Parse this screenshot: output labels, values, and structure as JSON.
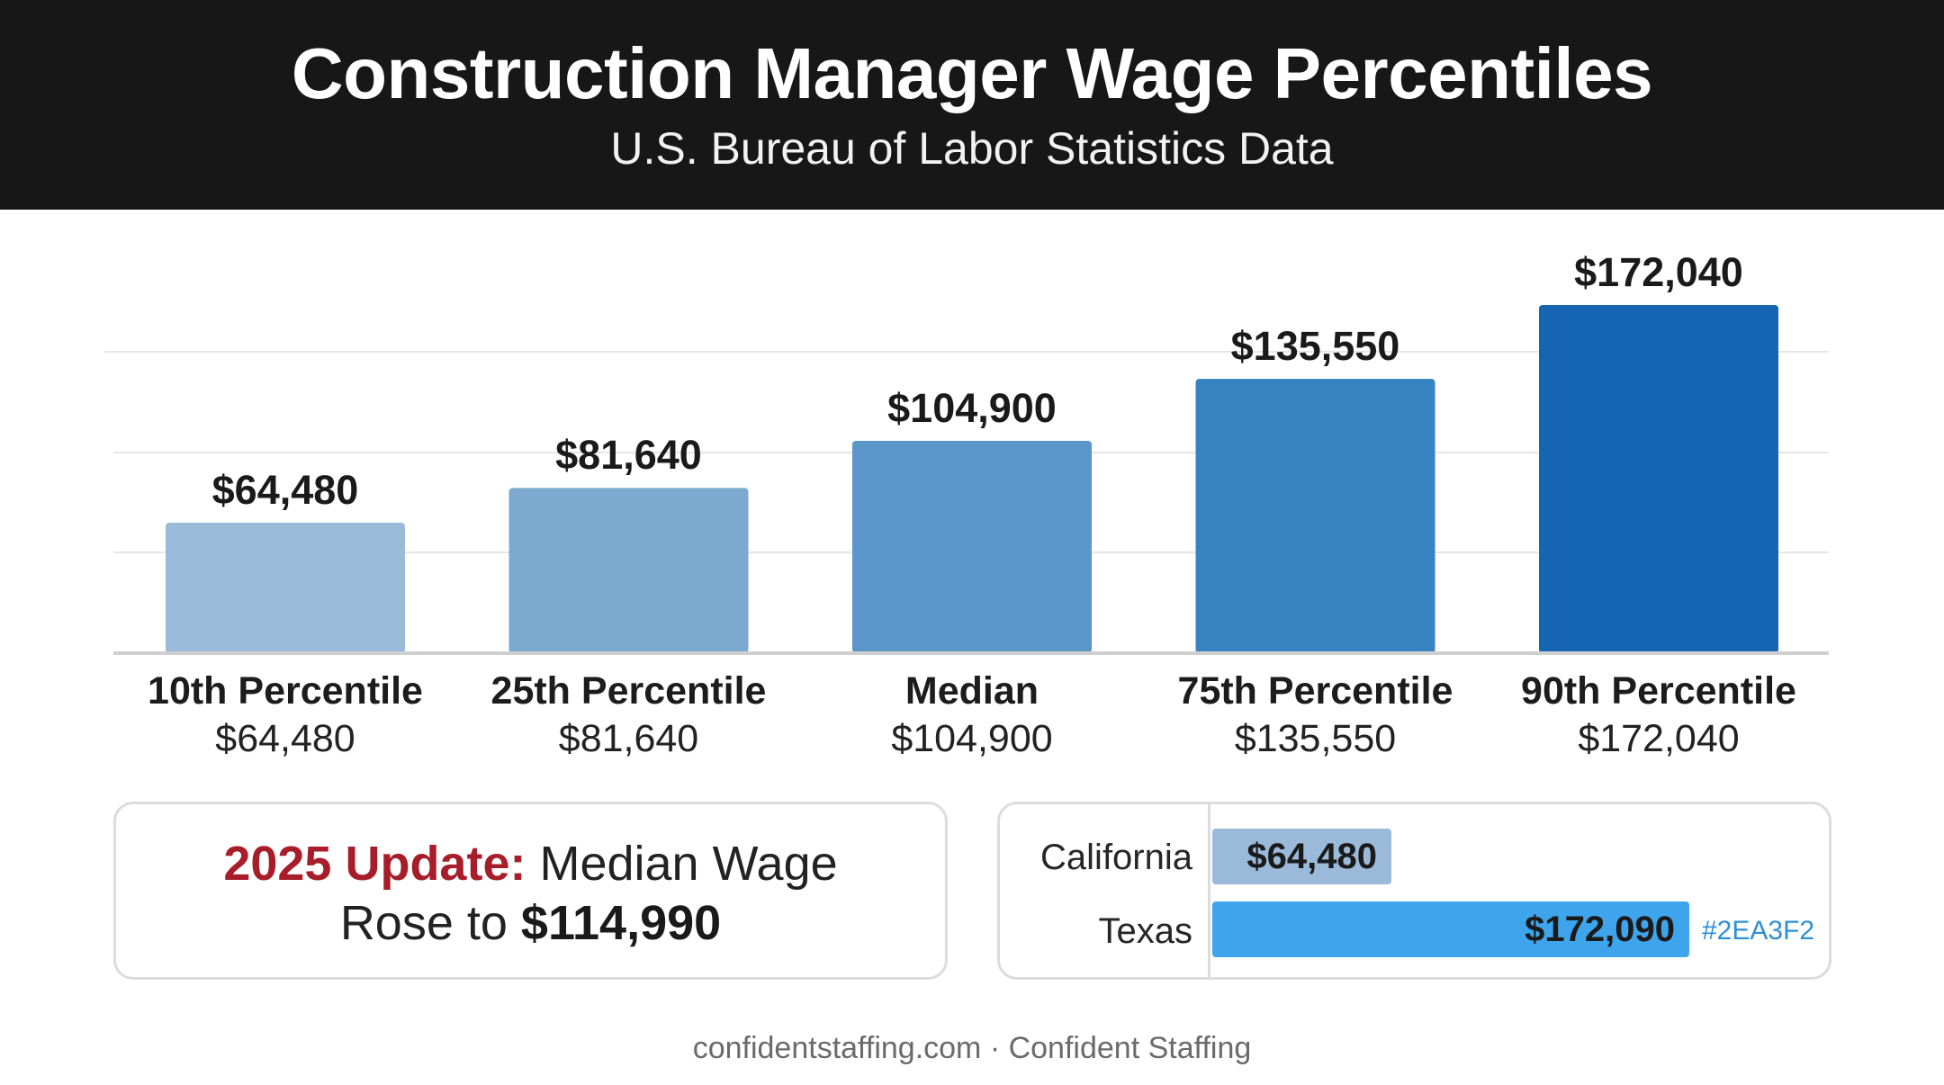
{
  "header": {
    "title": "Construction Manager Wage Percentiles",
    "subtitle": "U.S. Bureau of Labor Statistics Data"
  },
  "chart_data": {
    "type": "bar",
    "title": "Construction Manager Wage Percentiles",
    "subtitle": "U.S. Bureau of Labor Statistics Data",
    "categories": [
      "10th Percentile",
      "25th Percentile",
      "Median",
      "75th Percentile",
      "90th Percentile"
    ],
    "values": [
      64480,
      81640,
      104900,
      135550,
      172040
    ],
    "value_labels": [
      "$64,480",
      "$81,640",
      "$104,900",
      "$135,550",
      "$172,040"
    ],
    "bar_colors": [
      "#9bbad9",
      "#7ca9d0",
      "#5b96c9",
      "#3783c2",
      "#1565b3"
    ],
    "xlabel": "",
    "ylabel": "",
    "ylim": [
      0,
      180000
    ],
    "grid": true,
    "legend": "none"
  },
  "update": {
    "tag": "2025 Update:",
    "line1_rest": " Median Wage",
    "line2_prefix": "Rose to ",
    "amount": "$114,990"
  },
  "states": {
    "max_value": 172090,
    "items": [
      {
        "name": "California",
        "value": 64480,
        "label": "$64,480",
        "color": "#9bbad9"
      },
      {
        "name": "Texas",
        "value": 172090,
        "label": "$172,090",
        "color": "#3ea5ec",
        "hex_note": "#2EA3F2"
      }
    ]
  },
  "footer": {
    "text": "confidentstaffing.com · Confident Staffing"
  }
}
